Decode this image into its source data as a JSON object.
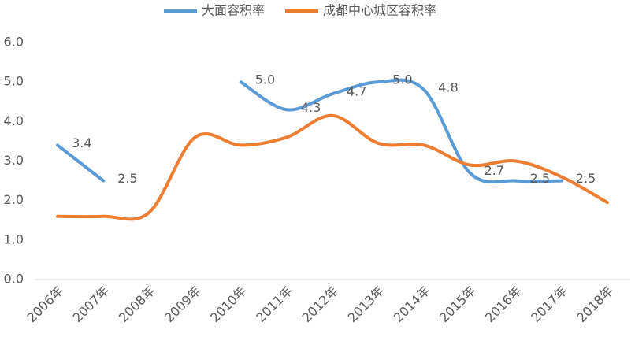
{
  "chart_data": {
    "type": "line",
    "categories": [
      "2006年",
      "2007年",
      "2008年",
      "2009年",
      "2010年",
      "2011年",
      "2012年",
      "2013年",
      "2014年",
      "2015年",
      "2016年",
      "2017年",
      "2018年"
    ],
    "series": [
      {
        "name": "大面容积率",
        "color": "#5b9bd5",
        "values": [
          3.4,
          2.5,
          null,
          null,
          5.0,
          4.3,
          4.7,
          5.0,
          4.8,
          2.7,
          2.5,
          2.5,
          null
        ],
        "value_labels": [
          "3.4",
          "2.5",
          null,
          null,
          "5.0",
          "4.3",
          "4.7",
          "5.0",
          "4.8",
          "2.7",
          "2.5",
          "2.5",
          null
        ]
      },
      {
        "name": "成都中心城区容积率",
        "color": "#ed7d31",
        "values": [
          1.6,
          1.6,
          1.7,
          3.6,
          3.4,
          3.6,
          4.15,
          3.45,
          3.4,
          2.9,
          3.0,
          2.6,
          1.95
        ]
      }
    ],
    "ylim": [
      0,
      6
    ],
    "yticks": [
      {
        "value": 0,
        "label": "0.0"
      },
      {
        "value": 1,
        "label": "1.0"
      },
      {
        "value": 2,
        "label": "2.0"
      },
      {
        "value": 3,
        "label": "3.0"
      },
      {
        "value": 4,
        "label": "4.0"
      },
      {
        "value": 5,
        "label": "5.0"
      },
      {
        "value": 6,
        "label": "6.0"
      }
    ],
    "grid": false,
    "legend": "top"
  }
}
